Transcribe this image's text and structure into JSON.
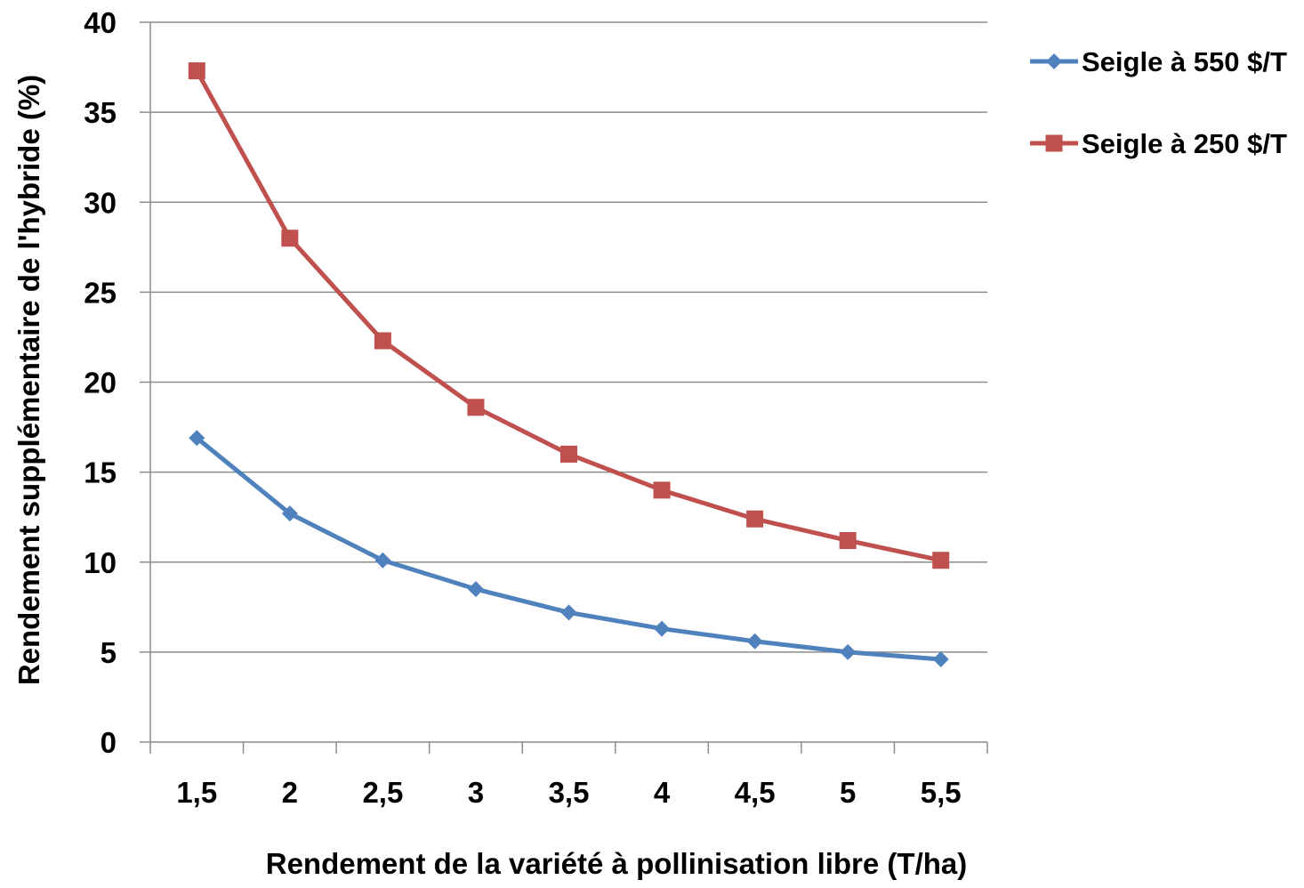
{
  "chart_data": {
    "type": "line",
    "title": "",
    "xlabel": "Rendement de la variété à pollinisation libre (T/ha)",
    "ylabel": "Rendement supplémentaire de l'hybride (%)",
    "categories": [
      "1,5",
      "2",
      "2,5",
      "3",
      "3,5",
      "4",
      "4,5",
      "5",
      "5,5"
    ],
    "ylim": [
      0,
      40
    ],
    "yticks": [
      "0",
      "5",
      "10",
      "15",
      "20",
      "25",
      "30",
      "35",
      "40"
    ],
    "grid": "horizontal",
    "legend_position": "right",
    "series": [
      {
        "name": "Seigle à 550 $/T",
        "color": "#4F81BD",
        "marker": "diamond",
        "values": [
          16.9,
          12.7,
          10.1,
          8.5,
          7.2,
          6.3,
          5.6,
          5.0,
          4.6
        ]
      },
      {
        "name": "Seigle à 250 $/T",
        "color": "#C0504D",
        "marker": "square",
        "values": [
          37.3,
          28.0,
          22.3,
          18.6,
          16.0,
          14.0,
          12.4,
          11.2,
          10.1
        ]
      }
    ]
  }
}
